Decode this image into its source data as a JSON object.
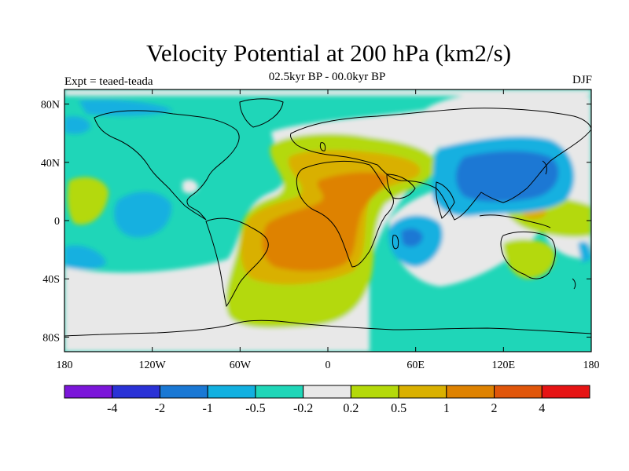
{
  "title": "Velocity Potential at 200 hPa (km2/s)",
  "subtitle": "02.5kyr BP - 00.0kyr BP",
  "left_string": "Expt = teaed-teada",
  "right_string": "DJF",
  "map": {
    "projection": "cylindrical-equidistant",
    "lon_range": [
      -180,
      180
    ],
    "lat_range": [
      -90,
      90
    ],
    "lon_ticks": [
      {
        "value": -180,
        "label": "180"
      },
      {
        "value": -120,
        "label": "120W"
      },
      {
        "value": -60,
        "label": "60W"
      },
      {
        "value": 0,
        "label": "0"
      },
      {
        "value": 60,
        "label": "60E"
      },
      {
        "value": 120,
        "label": "120E"
      },
      {
        "value": 180,
        "label": "180"
      }
    ],
    "lat_ticks": [
      {
        "value": 80,
        "label": "80N"
      },
      {
        "value": 40,
        "label": "40N"
      },
      {
        "value": 0,
        "label": "0"
      },
      {
        "value": -40,
        "label": "40S"
      },
      {
        "value": -80,
        "label": "80S"
      }
    ]
  },
  "colorbar": {
    "colors": [
      "#7b16d9",
      "#2a32d6",
      "#1a78d4",
      "#12b0e0",
      "#1fd6b8",
      "#e8e8e8",
      "#b4d90a",
      "#d9b000",
      "#de8200",
      "#e0560a",
      "#e61414"
    ],
    "labels": [
      "-4",
      "-2",
      "-1",
      "-0.5",
      "-0.2",
      "0.2",
      "0.5",
      "1",
      "2",
      "4"
    ]
  }
}
